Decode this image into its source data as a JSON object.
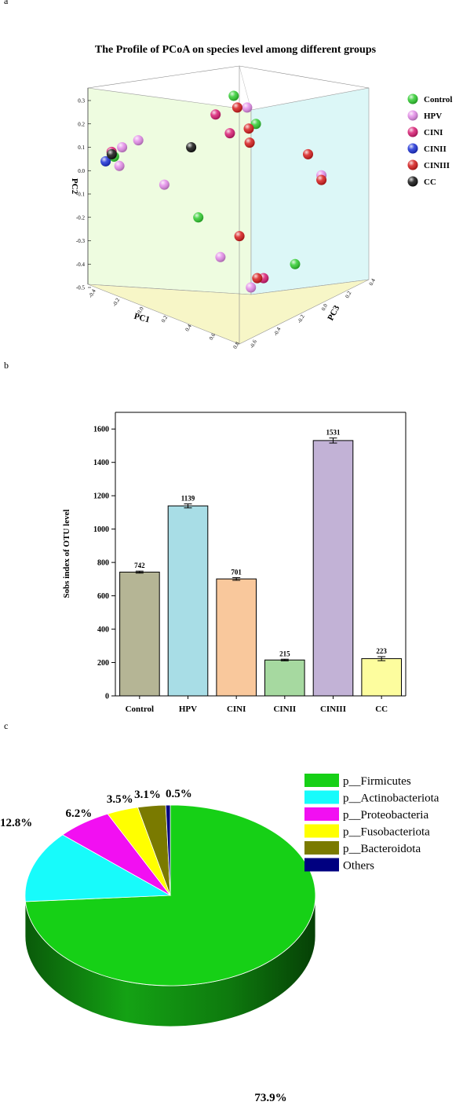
{
  "panel_labels": {
    "a": "a",
    "b": "b",
    "c": "c"
  },
  "chart_data": [
    {
      "type": "scatter",
      "title": "The Profile of PCoA on species level among different groups",
      "axes": {
        "x": "PC1",
        "y": "PC2",
        "z": "PC3"
      },
      "pc1_ticks": [
        "-0.4",
        "-0.2",
        "0.0",
        "0.2",
        "0.4",
        "0.6",
        "0.8"
      ],
      "pc2_ticks": [
        "0.3",
        "0.2",
        "0.1",
        "0.0",
        "-0.1",
        "-0.2",
        "-0.3",
        "-0.4",
        "-0.5"
      ],
      "pc3_ticks": [
        "-0.6",
        "-0.4",
        "-0.2",
        "0.0",
        "0.2",
        "0.4"
      ],
      "legend_position": "right",
      "series": [
        {
          "name": "Control",
          "color": "#2ecc2e",
          "points": [
            [
              0.6,
              0.32,
              0.4
            ],
            [
              0.55,
              0.2,
              0.0
            ],
            [
              0.15,
              -0.2,
              0.1
            ],
            [
              0.55,
              -0.4,
              -0.55
            ],
            [
              -0.32,
              0.06,
              0.45
            ]
          ]
        },
        {
          "name": "HPV",
          "color": "#e38be8",
          "points": [
            [
              0.65,
              0.27,
              0.3
            ],
            [
              -0.1,
              0.13,
              0.5
            ],
            [
              0.9,
              -0.02,
              -0.3
            ],
            [
              0.05,
              -0.06,
              0.4
            ],
            [
              -0.2,
              0.1,
              0.55
            ],
            [
              -0.25,
              0.02,
              0.5
            ],
            [
              0.1,
              -0.37,
              -0.3
            ],
            [
              0.2,
              -0.5,
              -0.55
            ]
          ]
        },
        {
          "name": "CINI",
          "color": "#d81b72",
          "points": [
            [
              0.4,
              0.24,
              0.3
            ],
            [
              0.4,
              0.16,
              0.1
            ],
            [
              -0.3,
              0.08,
              0.52
            ],
            [
              0.3,
              -0.46,
              -0.55
            ]
          ]
        },
        {
          "name": "CINII",
          "color": "#1a2fd6",
          "points": [
            [
              -0.33,
              0.04,
              0.55
            ]
          ]
        },
        {
          "name": "CINIII",
          "color": "#d61a1a",
          "points": [
            [
              0.6,
              0.27,
              0.35
            ],
            [
              0.55,
              0.18,
              0.1
            ],
            [
              0.5,
              0.12,
              0.0
            ],
            [
              0.85,
              0.07,
              -0.2
            ],
            [
              0.9,
              -0.04,
              -0.3
            ],
            [
              0.25,
              -0.28,
              -0.3
            ],
            [
              0.25,
              -0.46,
              -0.55
            ]
          ]
        },
        {
          "name": "CC",
          "color": "#111111",
          "points": [
            [
              0.15,
              0.1,
              0.2
            ],
            [
              -0.31,
              0.07,
              0.5
            ]
          ]
        }
      ]
    },
    {
      "type": "bar",
      "categories": [
        "Control",
        "HPV",
        "CINI",
        "CINII",
        "CINIII",
        "CC"
      ],
      "values": [
        742,
        1139,
        701,
        215,
        1531,
        223
      ],
      "errors": [
        6,
        12,
        8,
        5,
        15,
        12
      ],
      "colors": [
        "#b5b595",
        "#a8dde6",
        "#f9c89c",
        "#a6d9a0",
        "#c2b2d6",
        "#fdfd9e"
      ],
      "ylabel": "Sobs index of OTU level",
      "xlabel": "",
      "ylim": [
        0,
        1700
      ],
      "yticks": [
        0,
        200,
        400,
        600,
        800,
        1000,
        1200,
        1400,
        1600
      ],
      "data_labels": [
        "742",
        "1139",
        "701",
        "215",
        "1531",
        "223"
      ]
    },
    {
      "type": "pie",
      "labels": [
        "p__Firmicutes",
        "p__Actinobacteriota",
        "p__Proteobacteria",
        "p__Fusobacteriota",
        "p__Bacteroidota",
        "Others"
      ],
      "values": [
        73.9,
        12.8,
        6.2,
        3.5,
        3.1,
        0.5
      ],
      "percent_labels": [
        "73.9%",
        "12.8%",
        "6.2%",
        "3.5%",
        "3.1%",
        "0.5%"
      ],
      "colors": [
        "#16d016",
        "#17fbfb",
        "#f20ff2",
        "#ffff00",
        "#7a7a00",
        "#000080"
      ],
      "legend_position": "top-right"
    }
  ]
}
